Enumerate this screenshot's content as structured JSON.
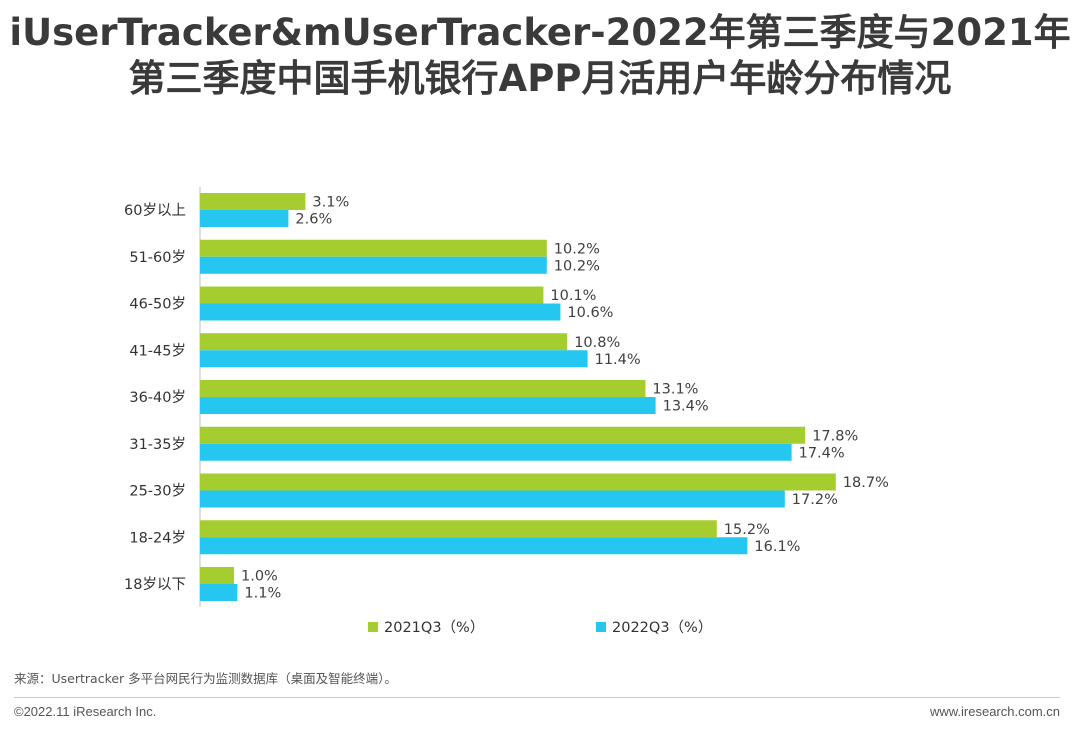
{
  "title": {
    "line1": "iUserTracker&mUserTracker-2022年第三季度与2021年",
    "line2": "第三季度中国手机银行APP月活用户年龄分布情况"
  },
  "chart_data": {
    "type": "bar",
    "orientation": "horizontal",
    "categories": [
      "60岁以上",
      "51-60岁",
      "46-50岁",
      "41-45岁",
      "36-40岁",
      "31-35岁",
      "25-30岁",
      "18-24岁",
      "18岁以下"
    ],
    "series": [
      {
        "name": "2021Q3（%）",
        "color": "#a6cd2f",
        "values": [
          3.1,
          10.2,
          10.1,
          10.8,
          13.1,
          17.8,
          18.7,
          15.2,
          1.0
        ],
        "labels": [
          "3.1%",
          "10.2%",
          "10.1%",
          "10.8%",
          "13.1%",
          "17.8%",
          "18.7%",
          "15.2%",
          "1.0%"
        ]
      },
      {
        "name": "2022Q3（%）",
        "color": "#25c6f0",
        "values": [
          2.6,
          10.2,
          10.6,
          11.4,
          13.4,
          17.4,
          17.2,
          16.1,
          1.1
        ],
        "labels": [
          "2.6%",
          "10.2%",
          "10.6%",
          "11.4%",
          "13.4%",
          "17.4%",
          "17.2%",
          "16.1%",
          "1.1%"
        ]
      }
    ],
    "legend_position": "bottom",
    "grid": false
  },
  "footer": {
    "source": "来源：Usertracker 多平台网民行为监测数据库（桌面及智能终端）。",
    "copyright": "©2022.11 iResearch Inc.",
    "website": "www.iresearch.com.cn"
  }
}
